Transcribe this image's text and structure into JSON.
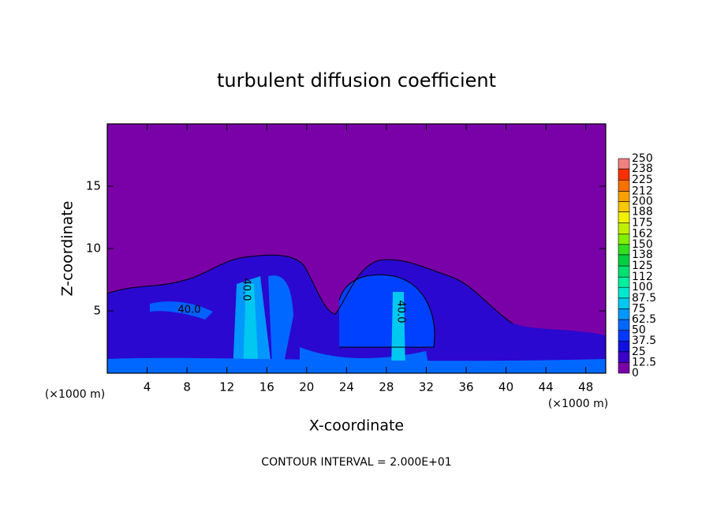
{
  "chart_data": {
    "type": "contour",
    "title": "turbulent diffusion coefficient",
    "xlabel": "X-coordinate",
    "ylabel": "Z-coordinate",
    "x_unit_labels": [
      "(×1000 m)",
      "(×1000 m)"
    ],
    "footer": "CONTOUR INTERVAL = 2.000E+01",
    "contour_labels": [
      "40.0",
      "40.0",
      "40.0"
    ],
    "xlim": [
      0,
      50
    ],
    "xticks": [
      4,
      8,
      12,
      16,
      20,
      24,
      28,
      32,
      36,
      40,
      44,
      48
    ],
    "ylim": [
      0,
      20
    ],
    "yticks": [
      5,
      10,
      15
    ],
    "colorbar": {
      "levels": [
        0,
        12.5,
        25,
        37.5,
        50,
        62.5,
        75,
        87.5,
        100,
        112,
        125,
        138,
        150,
        162,
        175,
        188,
        200,
        212,
        225,
        238,
        250
      ],
      "colors": [
        "#7a00a8",
        "#3c00c8",
        "#1010e0",
        "#0038ff",
        "#0068ff",
        "#0098ff",
        "#00c8f0",
        "#00e8d0",
        "#00f0a0",
        "#00e070",
        "#00d040",
        "#30e020",
        "#80f000",
        "#c0f000",
        "#f0f000",
        "#f8c800",
        "#f8a000",
        "#f87000",
        "#f83000",
        "#f08080"
      ]
    }
  }
}
